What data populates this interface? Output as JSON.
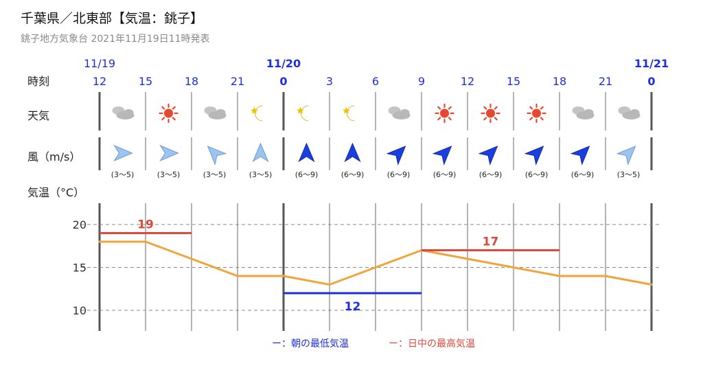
{
  "header": {
    "title": "千葉県／北東部【気温：銚子】",
    "subtitle": "銚子地方気象台 2021年11月19日11時発表"
  },
  "row_labels": {
    "time": "時刻",
    "weather": "天気",
    "wind": "風（m/s）",
    "temperature": "気温（°C）"
  },
  "legend": {
    "low": "ー：朝の最低気温",
    "high": "ー：日中の最高気温"
  },
  "colors": {
    "temp_line": "#f0a43a",
    "low": "#1c2ed8",
    "high": "#e0473a",
    "time_label": "#1c2ed8",
    "grid": "#9a9a9a"
  },
  "columns": [
    {
      "date": "11/19",
      "hour": "12",
      "weather": "cloud-icon",
      "wind_dir": "E",
      "wind_speed": "(3〜5)",
      "wind_strong": false
    },
    {
      "date": "",
      "hour": "15",
      "weather": "sun-icon",
      "wind_dir": "E",
      "wind_speed": "(3〜5)",
      "wind_strong": false
    },
    {
      "date": "",
      "hour": "18",
      "weather": "cloud-icon",
      "wind_dir": "NW",
      "wind_speed": "(3〜5)",
      "wind_strong": false
    },
    {
      "date": "",
      "hour": "21",
      "weather": "moon-icon",
      "wind_dir": "N",
      "wind_speed": "(3〜5)",
      "wind_strong": false
    },
    {
      "date": "11/20",
      "hour": "0",
      "weather": "moon-icon",
      "wind_dir": "N",
      "wind_speed": "(6〜9)",
      "wind_strong": true
    },
    {
      "date": "",
      "hour": "3",
      "weather": "moon-icon",
      "wind_dir": "N",
      "wind_speed": "(6〜9)",
      "wind_strong": true
    },
    {
      "date": "",
      "hour": "6",
      "weather": "cloud-icon",
      "wind_dir": "NE",
      "wind_speed": "(6〜9)",
      "wind_strong": true
    },
    {
      "date": "",
      "hour": "9",
      "weather": "sun-icon",
      "wind_dir": "NE",
      "wind_speed": "(6〜9)",
      "wind_strong": true
    },
    {
      "date": "",
      "hour": "12",
      "weather": "sun-icon",
      "wind_dir": "NE",
      "wind_speed": "(6〜9)",
      "wind_strong": true
    },
    {
      "date": "",
      "hour": "15",
      "weather": "sun-icon",
      "wind_dir": "NE",
      "wind_speed": "(6〜9)",
      "wind_strong": true
    },
    {
      "date": "",
      "hour": "18",
      "weather": "cloud-icon",
      "wind_dir": "NE",
      "wind_speed": "(6〜9)",
      "wind_strong": true
    },
    {
      "date": "",
      "hour": "21",
      "weather": "cloud-icon",
      "wind_dir": "NE",
      "wind_speed": "(3〜5)",
      "wind_strong": false
    },
    {
      "date": "11/21",
      "hour": "0",
      "weather": "",
      "wind_dir": "",
      "wind_speed": "",
      "wind_strong": false
    }
  ],
  "chart_data": {
    "type": "line",
    "x": [
      "11/19 12",
      "11/19 15",
      "11/19 18",
      "11/19 21",
      "11/20 0",
      "11/20 3",
      "11/20 6",
      "11/20 9",
      "11/20 12",
      "11/20 15",
      "11/20 18",
      "11/20 21",
      "11/21 0"
    ],
    "series": [
      {
        "values": [
          18,
          18,
          16,
          14,
          14,
          13,
          15,
          17,
          16,
          15,
          14,
          14,
          13
        ]
      }
    ],
    "ylim": [
      7,
      22
    ],
    "yticks": [
      10,
      15,
      20
    ],
    "grid": true,
    "annotations": [
      {
        "label": "19",
        "value": 19,
        "from_index": 0,
        "to_index": 2,
        "kind": "high"
      },
      {
        "label": "12",
        "value": 12,
        "from_index": 4,
        "to_index": 7,
        "kind": "low"
      },
      {
        "label": "17",
        "value": 17,
        "from_index": 7,
        "to_index": 10,
        "kind": "high"
      }
    ]
  }
}
